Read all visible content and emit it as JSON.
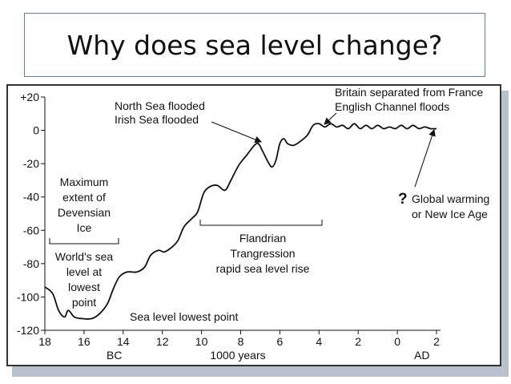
{
  "slide": {
    "title": "Why does sea level change?"
  },
  "chart_data": {
    "type": "line",
    "title": "",
    "xlabel": "1000 years",
    "ylabel": "",
    "x_direction": "decreasing (18 ka BC on left to AD 2 on right)",
    "xlim": [
      18,
      -2
    ],
    "ylim": [
      -120,
      20
    ],
    "x_tick_values": [
      18,
      16,
      14,
      12,
      10,
      8,
      6,
      4,
      2,
      0,
      -2
    ],
    "x_tick_labels": [
      "18",
      "16",
      "14",
      "12",
      "10",
      "8",
      "6",
      "4",
      "2",
      "0",
      "2"
    ],
    "y_tick_values": [
      20,
      0,
      -20,
      -40,
      -60,
      -80,
      -100,
      -120
    ],
    "y_tick_labels": [
      "+20",
      "0",
      "-20",
      "-40",
      "-60",
      "-80",
      "-100",
      "-120"
    ],
    "era_labels": [
      {
        "text": "BC",
        "x": 16
      },
      {
        "text": "AD",
        "x": -1.2
      }
    ],
    "series": [
      {
        "name": "Sea level",
        "points": [
          [
            18.0,
            -94
          ],
          [
            17.6,
            -98
          ],
          [
            17.3,
            -108
          ],
          [
            17.0,
            -112
          ],
          [
            16.8,
            -108
          ],
          [
            16.5,
            -112
          ],
          [
            16.1,
            -113
          ],
          [
            15.6,
            -113
          ],
          [
            15.2,
            -110
          ],
          [
            14.8,
            -104
          ],
          [
            14.5,
            -95
          ],
          [
            14.2,
            -88
          ],
          [
            13.8,
            -85
          ],
          [
            13.3,
            -85
          ],
          [
            12.9,
            -82
          ],
          [
            12.6,
            -75
          ],
          [
            12.2,
            -72
          ],
          [
            11.9,
            -73
          ],
          [
            11.5,
            -70
          ],
          [
            11.2,
            -66
          ],
          [
            10.9,
            -58
          ],
          [
            10.5,
            -53
          ],
          [
            10.2,
            -49
          ],
          [
            9.9,
            -38
          ],
          [
            9.6,
            -34
          ],
          [
            9.2,
            -33
          ],
          [
            8.8,
            -36
          ],
          [
            8.5,
            -30
          ],
          [
            8.1,
            -21
          ],
          [
            7.7,
            -15
          ],
          [
            7.3,
            -9
          ],
          [
            7.1,
            -8
          ],
          [
            6.9,
            -12
          ],
          [
            6.6,
            -19
          ],
          [
            6.4,
            -22
          ],
          [
            6.2,
            -18
          ],
          [
            6.0,
            -8
          ],
          [
            5.8,
            -5
          ],
          [
            5.6,
            -8
          ],
          [
            5.3,
            -9
          ],
          [
            5.0,
            -7
          ],
          [
            4.6,
            -3
          ],
          [
            4.3,
            3
          ],
          [
            4.0,
            4
          ],
          [
            3.7,
            2
          ],
          [
            3.4,
            4
          ],
          [
            3.1,
            2
          ],
          [
            2.8,
            3
          ],
          [
            2.5,
            1
          ],
          [
            2.2,
            4
          ],
          [
            1.9,
            1
          ],
          [
            1.6,
            3
          ],
          [
            1.3,
            1
          ],
          [
            1.0,
            3
          ],
          [
            0.7,
            1
          ],
          [
            0.4,
            2
          ],
          [
            0.1,
            1
          ],
          [
            -0.2,
            3
          ],
          [
            -0.5,
            1
          ],
          [
            -0.8,
            3
          ],
          [
            -1.1,
            1
          ],
          [
            -1.4,
            2
          ],
          [
            -1.7,
            1
          ],
          [
            -2.0,
            1
          ]
        ]
      }
    ],
    "annotations": [
      {
        "lines": [
          "Britain separated from France",
          "English Channel floods"
        ],
        "x": 4.0,
        "y": 4
      },
      {
        "lines": [
          "North Sea flooded",
          "Irish Sea flooded"
        ],
        "x": 7.1,
        "y": -8
      },
      {
        "lines": [
          "Maximum",
          "extent of",
          "Devensian",
          "Ice"
        ],
        "x_range": [
          18,
          14.8
        ]
      },
      {
        "lines": [
          "World's sea",
          "level at",
          "lowest",
          "point"
        ],
        "x_range": [
          18,
          14.8
        ]
      },
      {
        "lines": [
          "Flandrian",
          "Trangression",
          "rapid sea level rise"
        ],
        "x_range": [
          10.2,
          4.0
        ]
      },
      {
        "lines": [
          "Sea level lowest point"
        ],
        "x": 15.6,
        "y": -113
      },
      {
        "glyph": "?",
        "lines": [
          "Global warming",
          "or New Ice Age"
        ],
        "x": -1.7,
        "y": 1
      }
    ]
  }
}
